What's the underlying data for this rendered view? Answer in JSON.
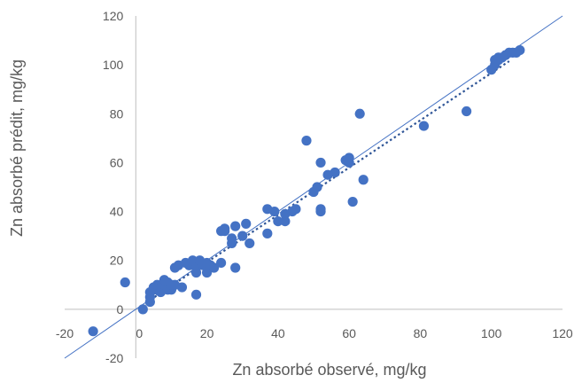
{
  "chart_data": {
    "type": "scatter",
    "xlabel": "Zn absorbé observé, mg/kg",
    "ylabel": "Zn absorbé prédit, mg/kg",
    "xlim": [
      -20,
      120
    ],
    "ylim": [
      -20,
      120
    ],
    "x_ticks": [
      "-20",
      "0",
      "20",
      "40",
      "60",
      "80",
      "100",
      "120"
    ],
    "y_ticks": [
      "-20",
      "0",
      "20",
      "40",
      "60",
      "80",
      "100",
      "120"
    ],
    "grid": false,
    "legend": "none",
    "colors": {
      "points": "#4472C4",
      "identity_line": "#4472C4",
      "trendline": "#2F5597",
      "axis": "#BFBFBF",
      "text": "#595959"
    },
    "identity_line": {
      "x": [
        -20,
        120
      ],
      "y": [
        -20,
        120
      ]
    },
    "trendline": {
      "x": [
        3,
        105
      ],
      "y": [
        2.8,
        101.5
      ]
    },
    "points": [
      [
        -12,
        -9
      ],
      [
        -3,
        11
      ],
      [
        2,
        0
      ],
      [
        4,
        3
      ],
      [
        4,
        5
      ],
      [
        4,
        7
      ],
      [
        5,
        8
      ],
      [
        5,
        9
      ],
      [
        6,
        8
      ],
      [
        6,
        10
      ],
      [
        7,
        9
      ],
      [
        7,
        7
      ],
      [
        8,
        10
      ],
      [
        8,
        12
      ],
      [
        9,
        11
      ],
      [
        9,
        8
      ],
      [
        10,
        8
      ],
      [
        10,
        10
      ],
      [
        11,
        10
      ],
      [
        11,
        17
      ],
      [
        12,
        18
      ],
      [
        13,
        9
      ],
      [
        14,
        19
      ],
      [
        15,
        18
      ],
      [
        16,
        19
      ],
      [
        16,
        20
      ],
      [
        17,
        17
      ],
      [
        17,
        15
      ],
      [
        17,
        6
      ],
      [
        18,
        20
      ],
      [
        19,
        18
      ],
      [
        20,
        15
      ],
      [
        20,
        19
      ],
      [
        21,
        18
      ],
      [
        22,
        17
      ],
      [
        24,
        19
      ],
      [
        24,
        32
      ],
      [
        25,
        33
      ],
      [
        25,
        32
      ],
      [
        27,
        27
      ],
      [
        27,
        29
      ],
      [
        28,
        17
      ],
      [
        28,
        34
      ],
      [
        30,
        30
      ],
      [
        31,
        35
      ],
      [
        32,
        27
      ],
      [
        37,
        31
      ],
      [
        37,
        41
      ],
      [
        39,
        40
      ],
      [
        40,
        36
      ],
      [
        42,
        36
      ],
      [
        42,
        39
      ],
      [
        44,
        40
      ],
      [
        45,
        41
      ],
      [
        48,
        69
      ],
      [
        50,
        48
      ],
      [
        51,
        50
      ],
      [
        52,
        40
      ],
      [
        52,
        41
      ],
      [
        52,
        60
      ],
      [
        54,
        55
      ],
      [
        56,
        56
      ],
      [
        59,
        61
      ],
      [
        60,
        60
      ],
      [
        60,
        62
      ],
      [
        61,
        44
      ],
      [
        63,
        80
      ],
      [
        64,
        53
      ],
      [
        81,
        75
      ],
      [
        93,
        81
      ],
      [
        100,
        98
      ],
      [
        101,
        100
      ],
      [
        101,
        102
      ],
      [
        102,
        102
      ],
      [
        102,
        103
      ],
      [
        103,
        103
      ],
      [
        104,
        104
      ],
      [
        105,
        105
      ],
      [
        106,
        105
      ],
      [
        107,
        105
      ],
      [
        108,
        106
      ]
    ]
  }
}
